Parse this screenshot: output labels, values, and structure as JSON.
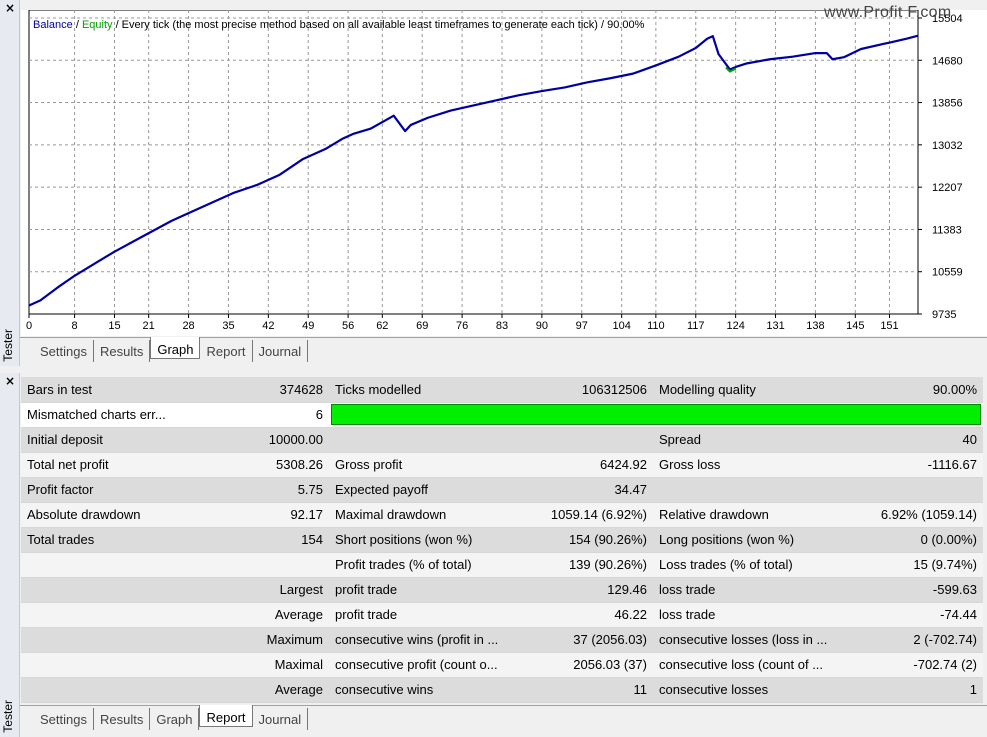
{
  "window": {
    "side_title": "Tester",
    "close_glyph": "×"
  },
  "watermark": "www.Profit F.com",
  "legend": {
    "balance": "Balance",
    "sep1": " / ",
    "equity": "Equity",
    "rest": " / Every tick (the most precise method based on all available least timeframes to generate each tick) / 90.00%"
  },
  "colors": {
    "balance": "#0000a0",
    "equity": "#00a000",
    "quality_bar": "#00ee00"
  },
  "tabs_top": [
    "Settings",
    "Results",
    "Graph",
    "Report",
    "Journal"
  ],
  "tabs_top_active": "Graph",
  "tabs_bottom": [
    "Settings",
    "Results",
    "Graph",
    "Report",
    "Journal"
  ],
  "tabs_bottom_active": "Report",
  "chart_data": {
    "type": "line",
    "series": [
      {
        "name": "Balance",
        "x": [
          0,
          2,
          5,
          8,
          12,
          15,
          20,
          25,
          28,
          32,
          36,
          40,
          44,
          48,
          52,
          55,
          57,
          60,
          64,
          66,
          67,
          70,
          74,
          78,
          82,
          86,
          90,
          94,
          98,
          102,
          106,
          110,
          114,
          117,
          119,
          120,
          121,
          123,
          124,
          126,
          130,
          134,
          138,
          140,
          141,
          143,
          146,
          150,
          154,
          156
        ],
        "y": [
          9900,
          10000,
          10250,
          10480,
          10750,
          10950,
          11250,
          11550,
          11700,
          11900,
          12100,
          12250,
          12450,
          12750,
          12950,
          13150,
          13250,
          13350,
          13600,
          13300,
          13420,
          13560,
          13700,
          13800,
          13900,
          14000,
          14080,
          14150,
          14250,
          14330,
          14420,
          14580,
          14750,
          14920,
          15100,
          15150,
          14800,
          14500,
          14550,
          14620,
          14700,
          14750,
          14820,
          14820,
          14700,
          14740,
          14900,
          15000,
          15100,
          15160
        ]
      }
    ],
    "x_ticks": [
      0,
      8,
      15,
      21,
      28,
      35,
      42,
      49,
      56,
      62,
      69,
      76,
      83,
      90,
      97,
      104,
      110,
      117,
      124,
      131,
      138,
      145,
      151
    ],
    "y_ticks": [
      9735,
      10559,
      11383,
      12207,
      13032,
      13856,
      14680,
      15504
    ],
    "xlim": [
      0,
      156
    ],
    "ylim": [
      9735,
      15504
    ],
    "grid": true
  },
  "report_rows": [
    [
      "Bars in test",
      "374628",
      "Ticks modelled",
      "106312506",
      "Modelling quality",
      "90.00%"
    ],
    [
      "Mismatched charts err...",
      "6",
      "",
      "",
      "",
      ""
    ],
    [
      "Initial deposit",
      "10000.00",
      "",
      "",
      "Spread",
      "40"
    ],
    [
      "Total net profit",
      "5308.26",
      "Gross profit",
      "6424.92",
      "Gross loss",
      "-1116.67"
    ],
    [
      "Profit factor",
      "5.75",
      "Expected payoff",
      "34.47",
      "",
      ""
    ],
    [
      "Absolute drawdown",
      "92.17",
      "Maximal drawdown",
      "1059.14 (6.92%)",
      "Relative drawdown",
      "6.92% (1059.14)"
    ],
    [
      "Total trades",
      "154",
      "Short positions (won %)",
      "154 (90.26%)",
      "Long positions (won %)",
      "0 (0.00%)"
    ],
    [
      "",
      "",
      "Profit trades (% of total)",
      "139 (90.26%)",
      "Loss trades (% of total)",
      "15 (9.74%)"
    ],
    [
      "",
      "Largest",
      "profit trade",
      "129.46",
      "loss trade",
      "-599.63"
    ],
    [
      "",
      "Average",
      "profit trade",
      "46.22",
      "loss trade",
      "-74.44"
    ],
    [
      "",
      "Maximum",
      "consecutive wins (profit in ...",
      "37 (2056.03)",
      "consecutive losses (loss in ...",
      "2 (-702.74)"
    ],
    [
      "",
      "Maximal",
      "consecutive profit (count o...",
      "2056.03 (37)",
      "consecutive loss (count of ...",
      "-702.74 (2)"
    ],
    [
      "",
      "Average",
      "consecutive wins",
      "11",
      "consecutive losses",
      "1"
    ]
  ],
  "modelling_quality_fraction": 0.9
}
